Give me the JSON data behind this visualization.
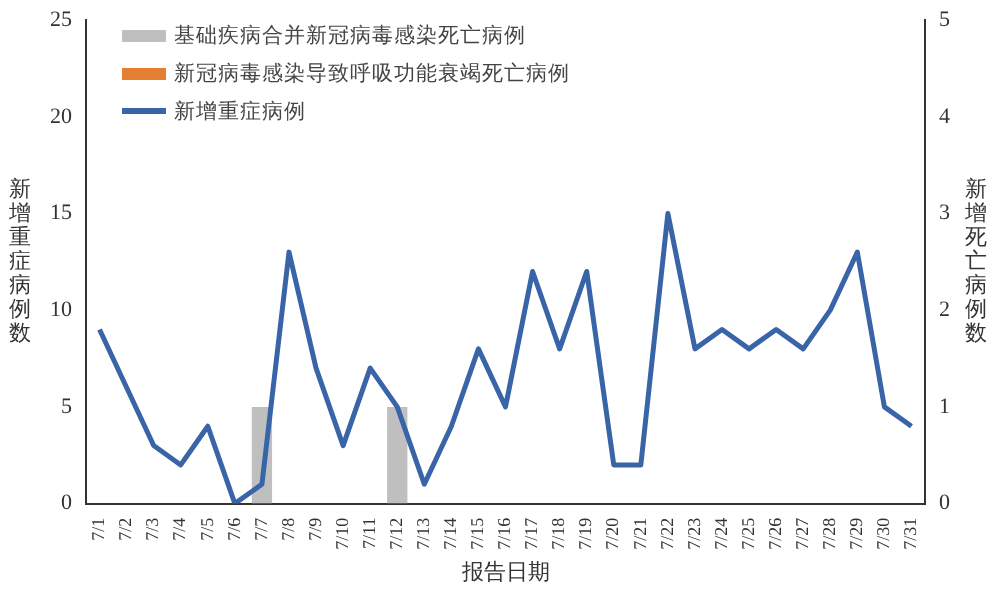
{
  "chart_data": {
    "type": "bar",
    "xlabel": "报告日期",
    "ylabel": "新增重症病例数",
    "y2label": "新增死亡病例数",
    "categories": [
      "7/1",
      "7/2",
      "7/3",
      "7/4",
      "7/5",
      "7/6",
      "7/7",
      "7/8",
      "7/9",
      "7/10",
      "7/11",
      "7/12",
      "7/13",
      "7/14",
      "7/15",
      "7/16",
      "7/17",
      "7/18",
      "7/19",
      "7/20",
      "7/21",
      "7/22",
      "7/23",
      "7/24",
      "7/25",
      "7/26",
      "7/27",
      "7/28",
      "7/29",
      "7/30",
      "7/31"
    ],
    "series": [
      {
        "name": "基础疾病合并新冠病毒感染死亡病例",
        "axis": "y2",
        "color": "#bfbfbf",
        "values": [
          0,
          0,
          0,
          0,
          0,
          0,
          1,
          0,
          0,
          0,
          0,
          1,
          0,
          0,
          0,
          0,
          0,
          0,
          0,
          0,
          0,
          0,
          0,
          0,
          0,
          0,
          0,
          0,
          0,
          0,
          0
        ]
      },
      {
        "name": "新冠病毒感染导致呼吸功能衰竭死亡病例",
        "axis": "y2",
        "color": "#e67e32",
        "values": [
          0,
          0,
          0,
          0,
          0,
          0,
          0,
          0,
          0,
          0,
          0,
          0,
          0,
          0,
          0,
          0,
          0,
          0,
          0,
          0,
          0,
          0,
          0,
          0,
          0,
          0,
          0,
          0,
          0,
          0,
          0
        ]
      },
      {
        "name": "新增重症病例",
        "type": "line",
        "color": "#3a64a8",
        "values": [
          9,
          6,
          3,
          2,
          4,
          0,
          1,
          13,
          7,
          3,
          7,
          5,
          1,
          4,
          8,
          5,
          12,
          8,
          12,
          2,
          2,
          15,
          8,
          9,
          8,
          9,
          8,
          10,
          13,
          5,
          4
        ]
      }
    ],
    "ylim": [
      0,
      25
    ],
    "yticks": [
      0,
      5,
      10,
      15,
      20,
      25
    ],
    "y2lim": [
      0,
      5
    ],
    "y2ticks": [
      0,
      1,
      2,
      3,
      4,
      5
    ],
    "grid": false,
    "legend": "top left",
    "marker": "none"
  }
}
